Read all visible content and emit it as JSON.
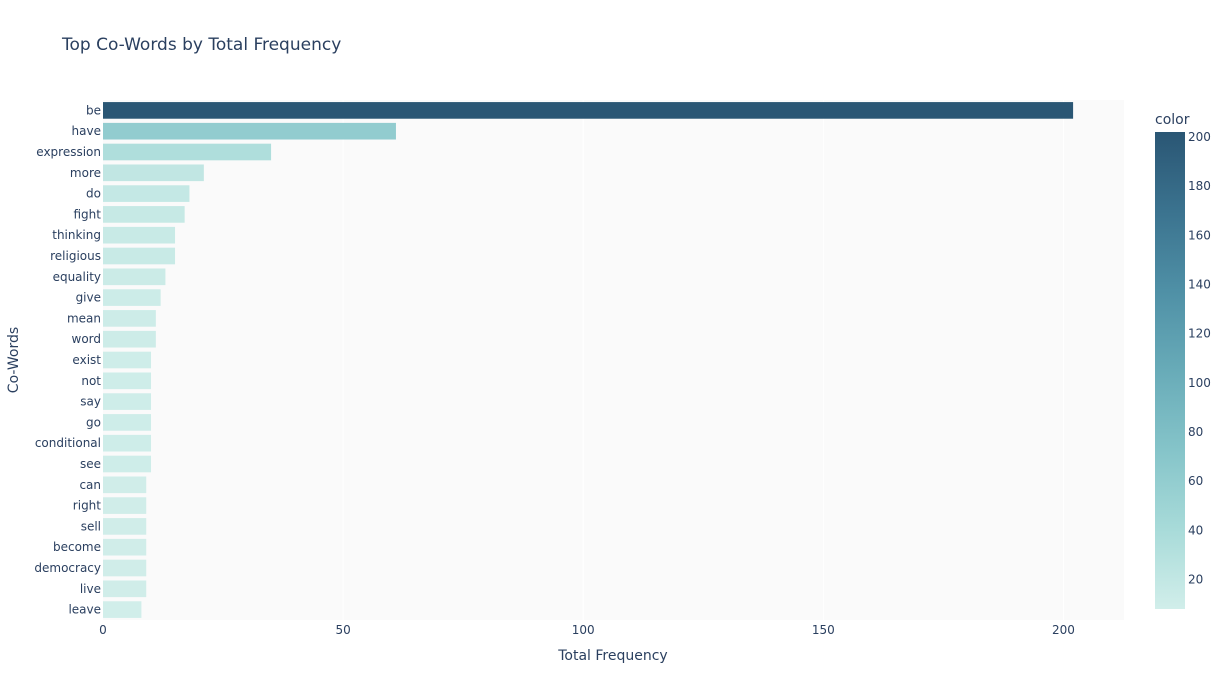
{
  "chart_data": {
    "type": "bar",
    "orientation": "horizontal",
    "title": "Top Co-Words by Total Frequency",
    "xlabel": "Total Frequency",
    "ylabel": "Co-Words",
    "xlim": [
      0,
      212.6
    ],
    "xticks": [
      0,
      50,
      100,
      150,
      200
    ],
    "categories": [
      "be",
      "have",
      "expression",
      "more",
      "do",
      "fight",
      "thinking",
      "religious",
      "equality",
      "give",
      "mean",
      "word",
      "exist",
      "not",
      "say",
      "go",
      "conditional",
      "see",
      "can",
      "right",
      "sell",
      "become",
      "democracy",
      "live",
      "leave"
    ],
    "values": [
      202,
      61,
      35,
      21,
      18,
      17,
      15,
      15,
      13,
      12,
      11,
      11,
      10,
      10,
      10,
      10,
      10,
      10,
      9,
      9,
      9,
      9,
      9,
      9,
      8
    ],
    "grid": true,
    "colorbar": {
      "title": "color",
      "range": [
        8,
        202
      ],
      "ticks": [
        20,
        40,
        60,
        80,
        100,
        120,
        140,
        160,
        180,
        200
      ],
      "colorscale": [
        "#d1eeea",
        "#a8dbd9",
        "#85c4c9",
        "#68abb8",
        "#4f90a6",
        "#3b738f",
        "#2a5674"
      ]
    },
    "plot_bg": "#fafafa"
  }
}
